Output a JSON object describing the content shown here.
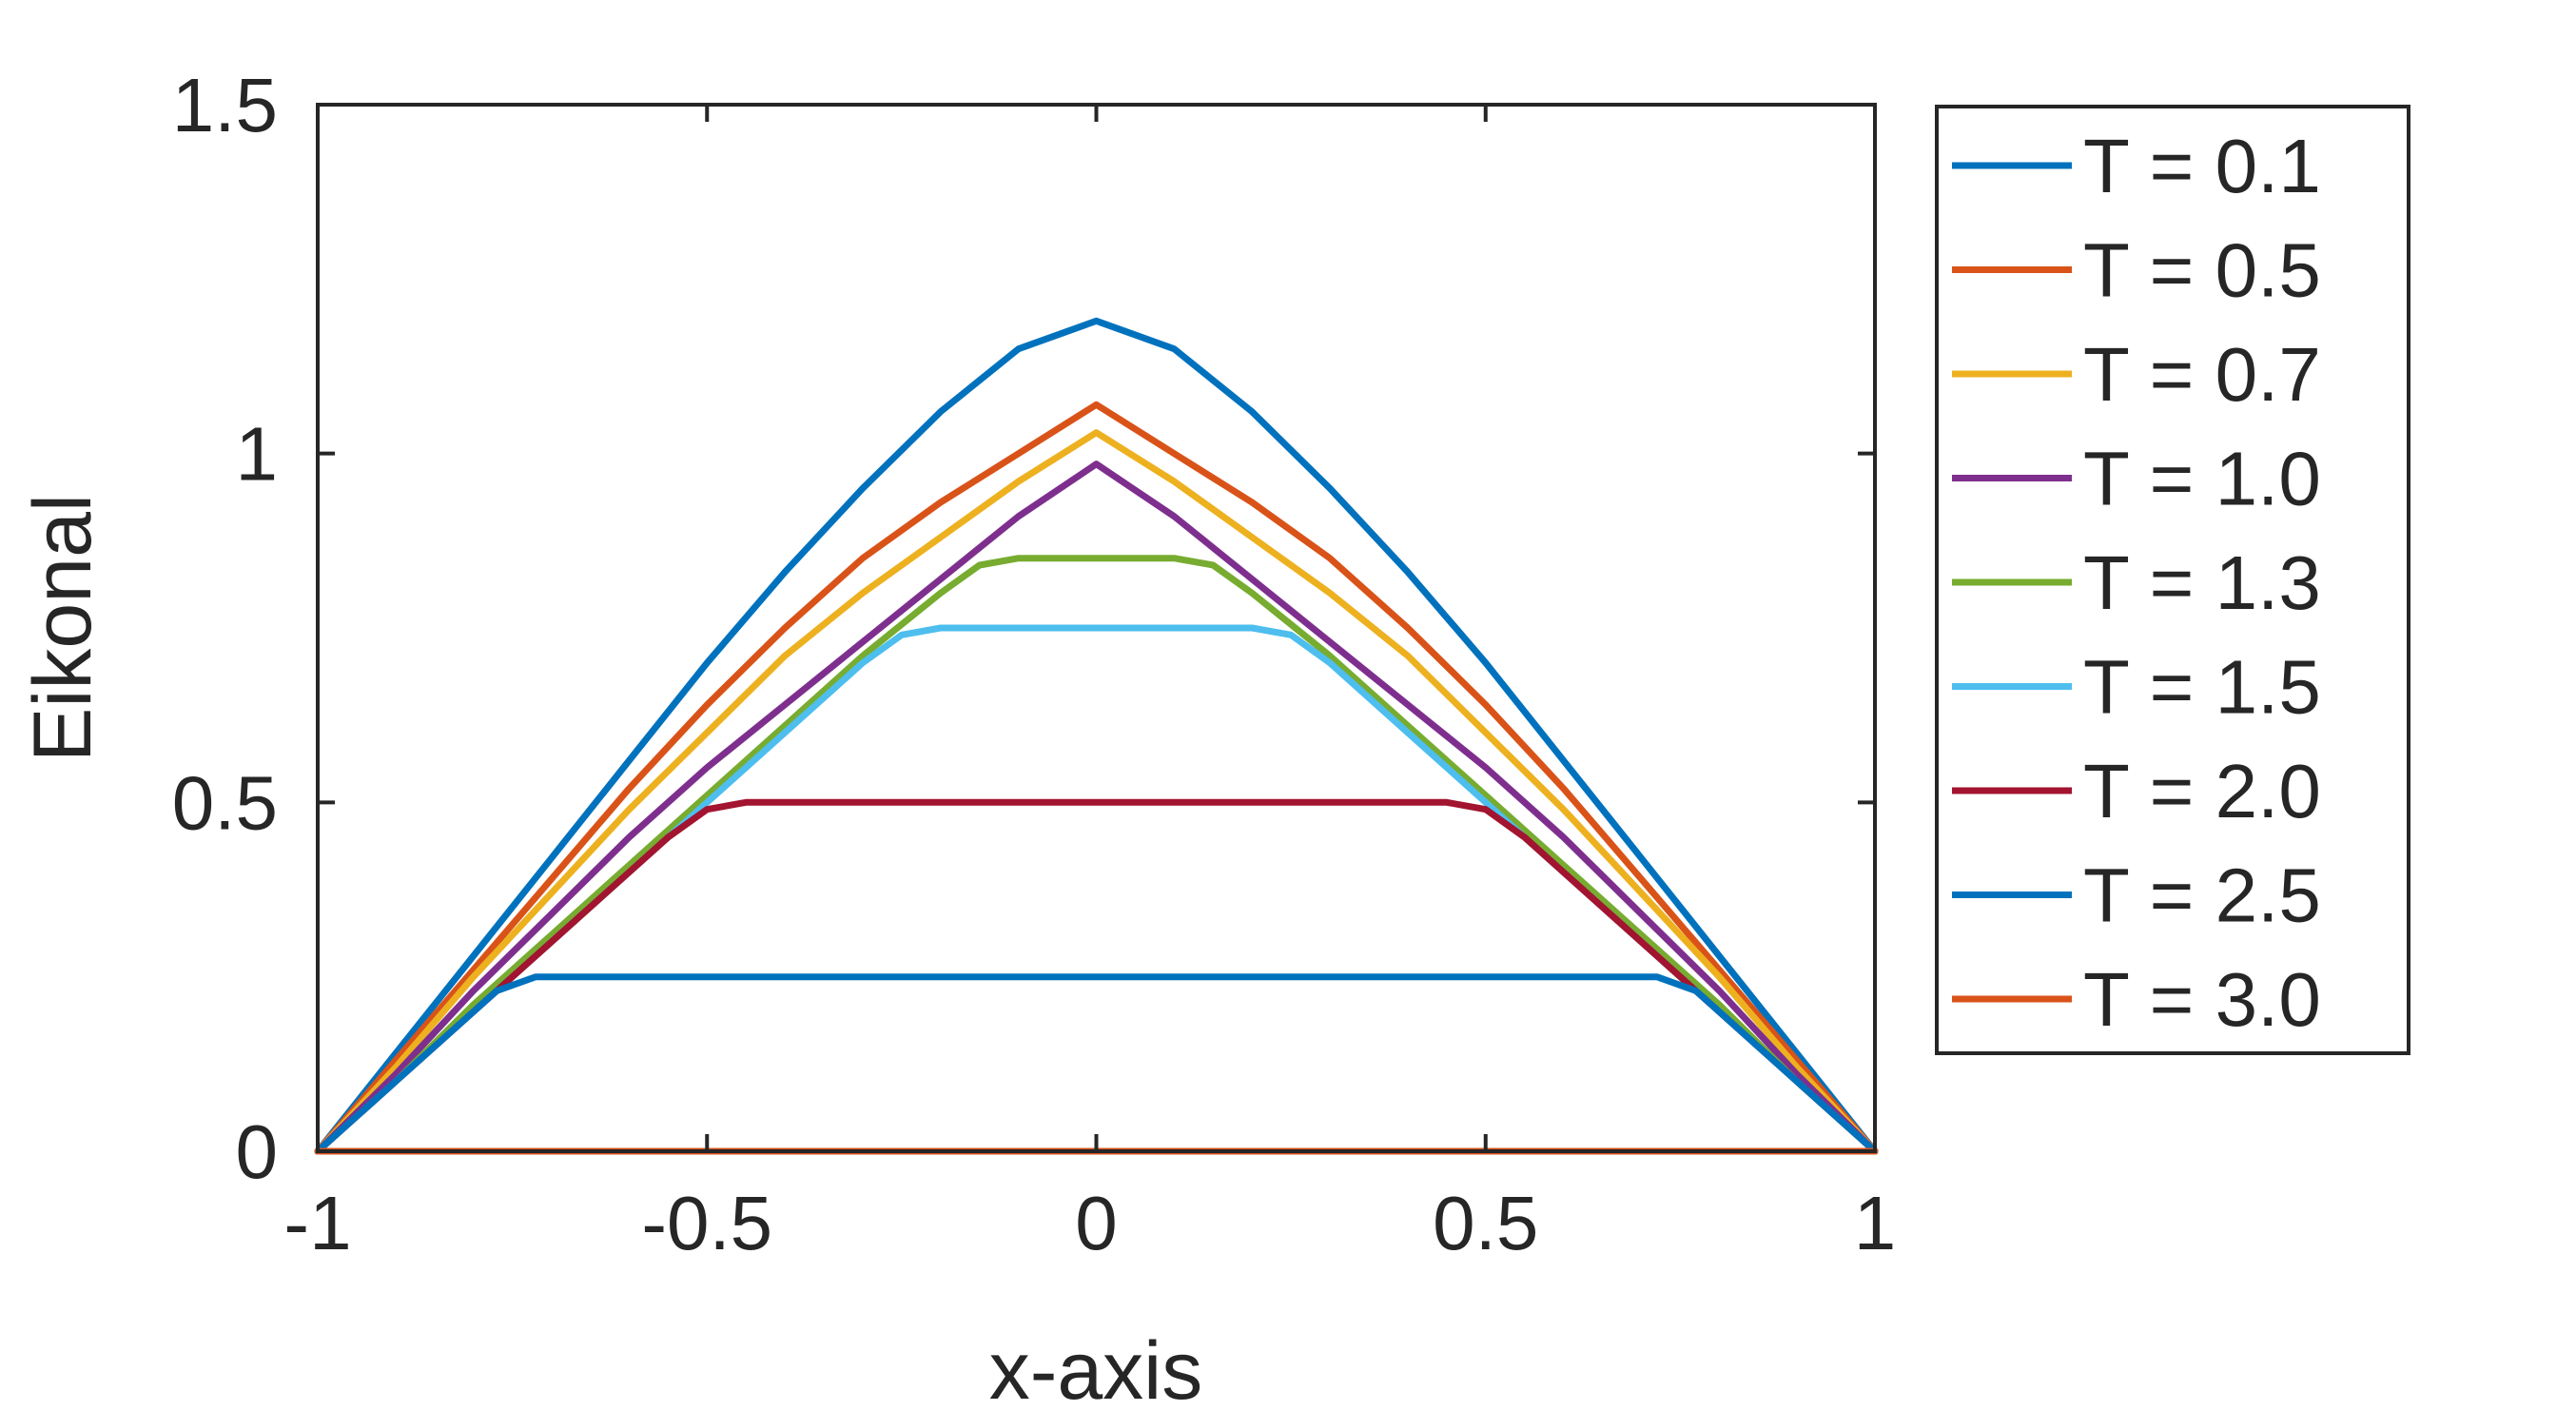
{
  "chart_data": {
    "type": "line",
    "title": "",
    "xlabel": "x-axis",
    "ylabel": "Eikonal",
    "xlim": [
      -1,
      1
    ],
    "ylim": [
      0,
      1.5
    ],
    "xticks": [
      -1,
      -0.5,
      0,
      0.5,
      1
    ],
    "xtick_labels": [
      "-1",
      "-0.5",
      "0",
      "0.5",
      "1"
    ],
    "yticks": [
      0,
      0.5,
      1,
      1.5
    ],
    "ytick_labels": [
      "0",
      "0.5",
      "1",
      "1.5"
    ],
    "grid": false,
    "legend_position": "outside-right",
    "series": [
      {
        "name": "T = 0.1",
        "color": "#0072BD",
        "x": [
          -1,
          -0.9,
          -0.8,
          -0.7,
          -0.6,
          -0.5,
          -0.4,
          -0.3,
          -0.2,
          -0.1,
          0,
          0.1,
          0.2,
          0.3,
          0.4,
          0.5,
          0.6,
          0.7,
          0.8,
          0.9,
          1
        ],
        "y": [
          0,
          0.14,
          0.28,
          0.42,
          0.56,
          0.7,
          0.83,
          0.95,
          1.06,
          1.15,
          1.19,
          1.15,
          1.06,
          0.95,
          0.83,
          0.7,
          0.56,
          0.42,
          0.28,
          0.14,
          0
        ]
      },
      {
        "name": "T = 0.5",
        "color": "#D95319",
        "x": [
          -1,
          -0.9,
          -0.8,
          -0.7,
          -0.6,
          -0.5,
          -0.4,
          -0.3,
          -0.2,
          -0.1,
          0,
          0.1,
          0.2,
          0.3,
          0.4,
          0.5,
          0.6,
          0.7,
          0.8,
          0.9,
          1
        ],
        "y": [
          0,
          0.13,
          0.26,
          0.39,
          0.52,
          0.64,
          0.75,
          0.85,
          0.93,
          1.0,
          1.07,
          1.0,
          0.93,
          0.85,
          0.75,
          0.64,
          0.52,
          0.39,
          0.26,
          0.13,
          0
        ]
      },
      {
        "name": "T = 0.7",
        "color": "#EDB120",
        "x": [
          -1,
          -0.9,
          -0.8,
          -0.7,
          -0.6,
          -0.5,
          -0.4,
          -0.3,
          -0.2,
          -0.1,
          0,
          0.1,
          0.2,
          0.3,
          0.4,
          0.5,
          0.6,
          0.7,
          0.8,
          0.9,
          1
        ],
        "y": [
          0,
          0.12,
          0.25,
          0.37,
          0.49,
          0.6,
          0.71,
          0.8,
          0.88,
          0.96,
          1.03,
          0.96,
          0.88,
          0.8,
          0.71,
          0.6,
          0.49,
          0.37,
          0.25,
          0.12,
          0
        ]
      },
      {
        "name": "T = 1.0",
        "color": "#7E2F8E",
        "x": [
          -1,
          -0.9,
          -0.8,
          -0.7,
          -0.6,
          -0.5,
          -0.4,
          -0.3,
          -0.2,
          -0.1,
          0,
          0.1,
          0.2,
          0.3,
          0.4,
          0.5,
          0.6,
          0.7,
          0.8,
          0.9,
          1
        ],
        "y": [
          0,
          0.11,
          0.23,
          0.34,
          0.45,
          0.55,
          0.64,
          0.73,
          0.82,
          0.91,
          0.985,
          0.91,
          0.82,
          0.73,
          0.64,
          0.55,
          0.45,
          0.34,
          0.23,
          0.11,
          0
        ]
      },
      {
        "name": "T = 1.3",
        "color": "#77AC30",
        "x": [
          -1,
          -0.9,
          -0.8,
          -0.7,
          -0.6,
          -0.5,
          -0.4,
          -0.3,
          -0.2,
          -0.15,
          -0.1,
          0,
          0.1,
          0.15,
          0.2,
          0.3,
          0.4,
          0.5,
          0.6,
          0.7,
          0.8,
          0.9,
          1
        ],
        "y": [
          0,
          0.1,
          0.21,
          0.31,
          0.41,
          0.51,
          0.61,
          0.71,
          0.8,
          0.84,
          0.85,
          0.85,
          0.85,
          0.84,
          0.8,
          0.71,
          0.61,
          0.51,
          0.41,
          0.31,
          0.21,
          0.1,
          0
        ]
      },
      {
        "name": "T = 1.5",
        "color": "#4DBEEE",
        "x": [
          -1,
          -0.9,
          -0.8,
          -0.7,
          -0.6,
          -0.5,
          -0.4,
          -0.3,
          -0.25,
          -0.2,
          0,
          0.2,
          0.25,
          0.3,
          0.4,
          0.5,
          0.6,
          0.7,
          0.8,
          0.9,
          1
        ],
        "y": [
          0,
          0.1,
          0.2,
          0.3,
          0.4,
          0.5,
          0.6,
          0.7,
          0.74,
          0.75,
          0.75,
          0.75,
          0.74,
          0.7,
          0.6,
          0.5,
          0.4,
          0.3,
          0.2,
          0.1,
          0
        ]
      },
      {
        "name": "T = 2.0",
        "color": "#A2142F",
        "x": [
          -1,
          -0.9,
          -0.8,
          -0.7,
          -0.6,
          -0.55,
          -0.5,
          -0.45,
          0,
          0.45,
          0.5,
          0.55,
          0.6,
          0.7,
          0.8,
          0.9,
          1
        ],
        "y": [
          0,
          0.1,
          0.2,
          0.3,
          0.4,
          0.45,
          0.49,
          0.5,
          0.5,
          0.5,
          0.49,
          0.45,
          0.4,
          0.3,
          0.2,
          0.1,
          0
        ]
      },
      {
        "name": "T = 2.5",
        "color": "#0072BD",
        "x": [
          -1,
          -0.9,
          -0.8,
          -0.77,
          -0.72,
          -0.7,
          0,
          0.7,
          0.72,
          0.77,
          0.8,
          0.9,
          1
        ],
        "y": [
          0,
          0.1,
          0.2,
          0.23,
          0.25,
          0.25,
          0.25,
          0.25,
          0.25,
          0.23,
          0.2,
          0.1,
          0
        ]
      },
      {
        "name": "T = 3.0",
        "color": "#D95319",
        "x": [
          -1,
          0,
          1
        ],
        "y": [
          0,
          0,
          0
        ]
      }
    ]
  }
}
